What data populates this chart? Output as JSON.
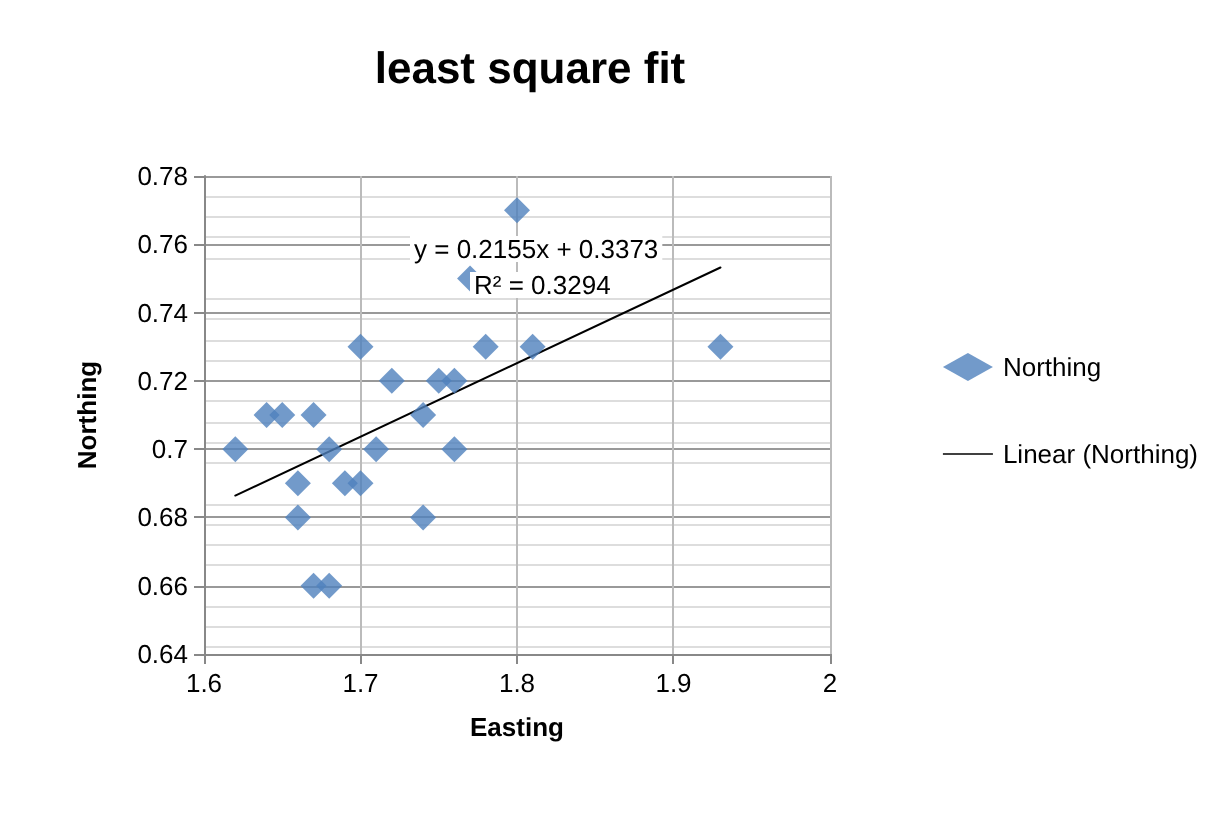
{
  "chart_data": {
    "type": "scatter",
    "title": "least square fit",
    "xlabel": "Easting",
    "ylabel": "Northing",
    "xlim": [
      1.6,
      2
    ],
    "xticks": [
      1.6,
      1.7,
      1.8,
      1.9,
      2
    ],
    "ylim": [
      0.64,
      0.78
    ],
    "yticks": [
      0.64,
      0.66,
      0.68,
      0.7,
      0.72,
      0.74,
      0.76,
      0.78
    ],
    "grid": true,
    "legend": "right",
    "annotations": [
      "y = 0.2155x + 0.3373",
      "R² = 0.3294"
    ],
    "series": [
      {
        "name": "Northing",
        "marker": "diamond",
        "color": "#4f81bd",
        "x": [
          1.62,
          1.64,
          1.65,
          1.67,
          1.66,
          1.66,
          1.67,
          1.68,
          1.68,
          1.69,
          1.7,
          1.7,
          1.71,
          1.72,
          1.74,
          1.74,
          1.75,
          1.76,
          1.76,
          1.77,
          1.78,
          1.8,
          1.81,
          1.93
        ],
        "values": [
          0.7,
          0.71,
          0.71,
          0.71,
          0.69,
          0.68,
          0.66,
          0.66,
          0.7,
          0.69,
          0.69,
          0.73,
          0.7,
          0.72,
          0.68,
          0.71,
          0.72,
          0.72,
          0.7,
          0.75,
          0.73,
          0.77,
          0.73,
          0.73
        ]
      },
      {
        "name": "Linear (Northing)",
        "type": "line",
        "marker": "none",
        "line_style": "solid",
        "color": "#000000",
        "x": [
          1.62,
          1.93
        ],
        "values": [
          0.6864,
          0.7532
        ]
      }
    ]
  }
}
